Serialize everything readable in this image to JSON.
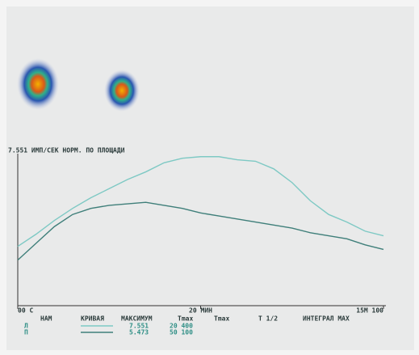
{
  "chart_data": {
    "type": "line",
    "header": "7.551 ИМП/СЕК   НОРМ. ПО ПЛОЩАДИ",
    "x": [
      0,
      1,
      2,
      3,
      4,
      5,
      6,
      7,
      8,
      9,
      10,
      11,
      12,
      13,
      14,
      15,
      16,
      17,
      18,
      19,
      20
    ],
    "xlim": [
      0,
      20
    ],
    "ylim": [
      0,
      100
    ],
    "x_labels": [
      {
        "value": 0,
        "label": "00 C"
      },
      {
        "value": 10,
        "label": "20 МИН"
      },
      {
        "value": 20,
        "label": "15М 100"
      }
    ],
    "series": [
      {
        "name": "Л",
        "color": "#7ec9c4",
        "values": [
          39,
          47,
          56,
          64,
          71,
          77,
          83,
          88,
          94,
          97,
          98,
          98,
          96,
          95,
          90,
          81,
          69,
          60,
          55,
          49,
          46
        ],
        "cells": [
          "7.551",
          "20 400"
        ]
      },
      {
        "name": "П",
        "color": "#3f7f7a",
        "values": [
          30,
          41,
          52,
          60,
          64,
          66,
          67,
          68,
          66,
          64,
          61,
          59,
          57,
          55,
          53,
          51,
          48,
          46,
          44,
          40,
          37
        ],
        "cells": [
          "5.473",
          "50 100"
        ]
      }
    ],
    "columns": [
      "НАМ",
      "КРИВАЯ",
      "МАКСИМУМ",
      "Tmax",
      "Tmax",
      "T 1/2",
      "ИНТЕГРАЛ МАХ"
    ]
  }
}
